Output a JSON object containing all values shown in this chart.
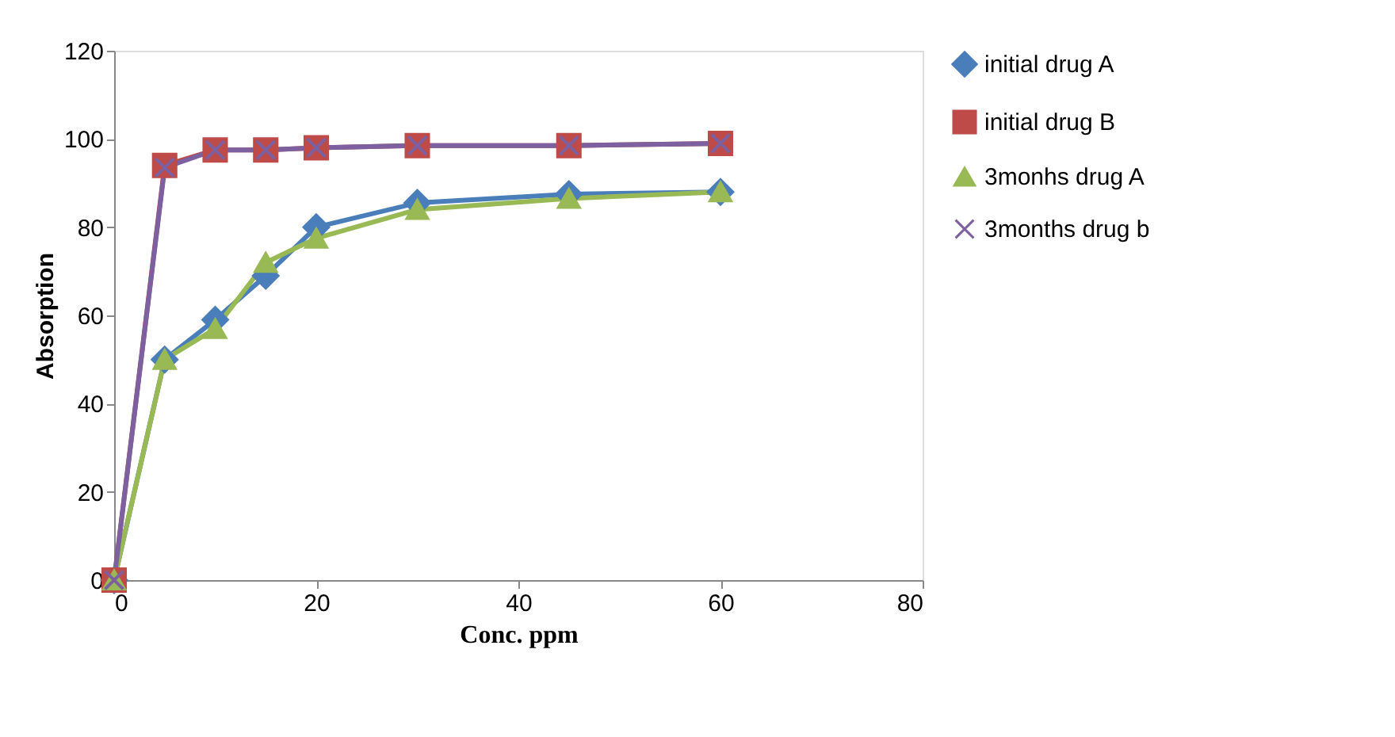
{
  "chart_data": {
    "type": "line",
    "xlabel": "Conc. ppm",
    "ylabel": "Absorption",
    "x": [
      0,
      5,
      10,
      15,
      20,
      30,
      45,
      60
    ],
    "series": [
      {
        "name": "initial drug A",
        "color": "#4a7ebb",
        "marker": "diamond",
        "values": [
          0,
          50,
          59,
          69,
          80,
          85.5,
          87.5,
          88
        ]
      },
      {
        "name": "initial drug B",
        "color": "#be4b48",
        "marker": "square",
        "values": [
          0,
          94,
          97.5,
          97.5,
          98,
          98.5,
          98.5,
          99
        ]
      },
      {
        "name": "3monhs drug A",
        "color": "#98b954",
        "marker": "triangle",
        "values": [
          0,
          50,
          57,
          72,
          77.5,
          84,
          86.5,
          88
        ]
      },
      {
        "name": "3months drug b",
        "color": "#7d60a0",
        "marker": "cross",
        "values": [
          0,
          93.5,
          97.5,
          97.5,
          98,
          98.5,
          98.5,
          99
        ]
      }
    ],
    "xlim": [
      0,
      80
    ],
    "xticks": [
      0,
      20,
      40,
      60,
      80
    ],
    "ylim": [
      0,
      120
    ],
    "yticks": [
      0,
      20,
      40,
      60,
      80,
      100,
      120
    ],
    "grid": false,
    "legend": "right"
  }
}
